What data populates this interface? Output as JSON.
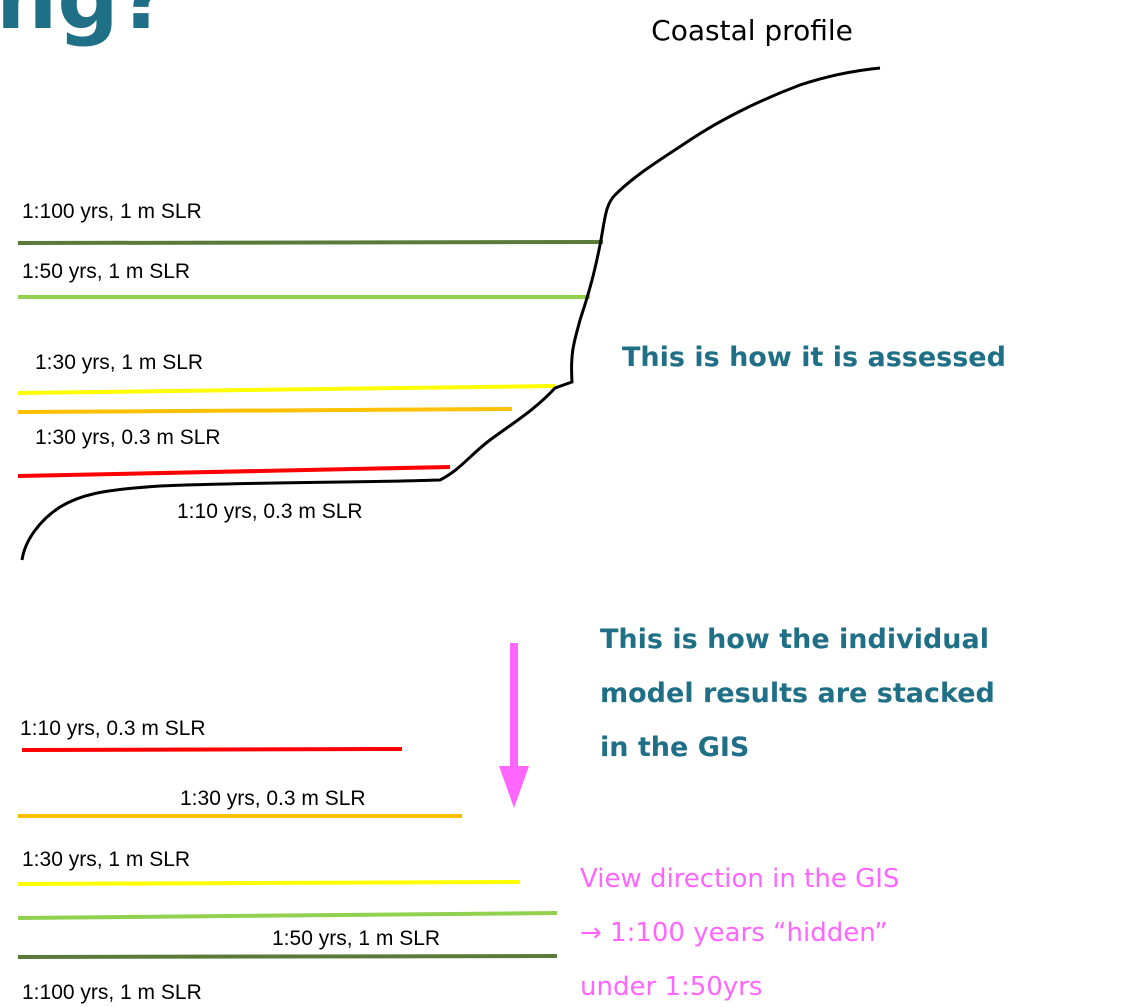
{
  "title_fragment": "ng?",
  "profile": {
    "title": "Coastal profile",
    "caption": "This is how it is assessed",
    "levels": [
      "1:100 yrs, 1 m SLR",
      "1:50 yrs, 1 m SLR",
      "1:30 yrs, 1 m SLR",
      "1:30 yrs, 0.3 m SLR",
      "1:10 yrs, 0.3 m SLR"
    ]
  },
  "stack": {
    "caption": [
      "This is how the individual",
      "model results are stacked",
      "in the GIS"
    ],
    "levels": [
      "1:10 yrs, 0.3 m SLR",
      "1:30 yrs, 0.3 m SLR",
      "1:30 yrs, 1 m SLR",
      "1:50 yrs, 1 m SLR",
      "1:100 yrs, 1 m SLR"
    ],
    "note": [
      "View direction in the GIS",
      "→ 1:100 years “hidden”",
      "under 1:50yrs"
    ]
  }
}
